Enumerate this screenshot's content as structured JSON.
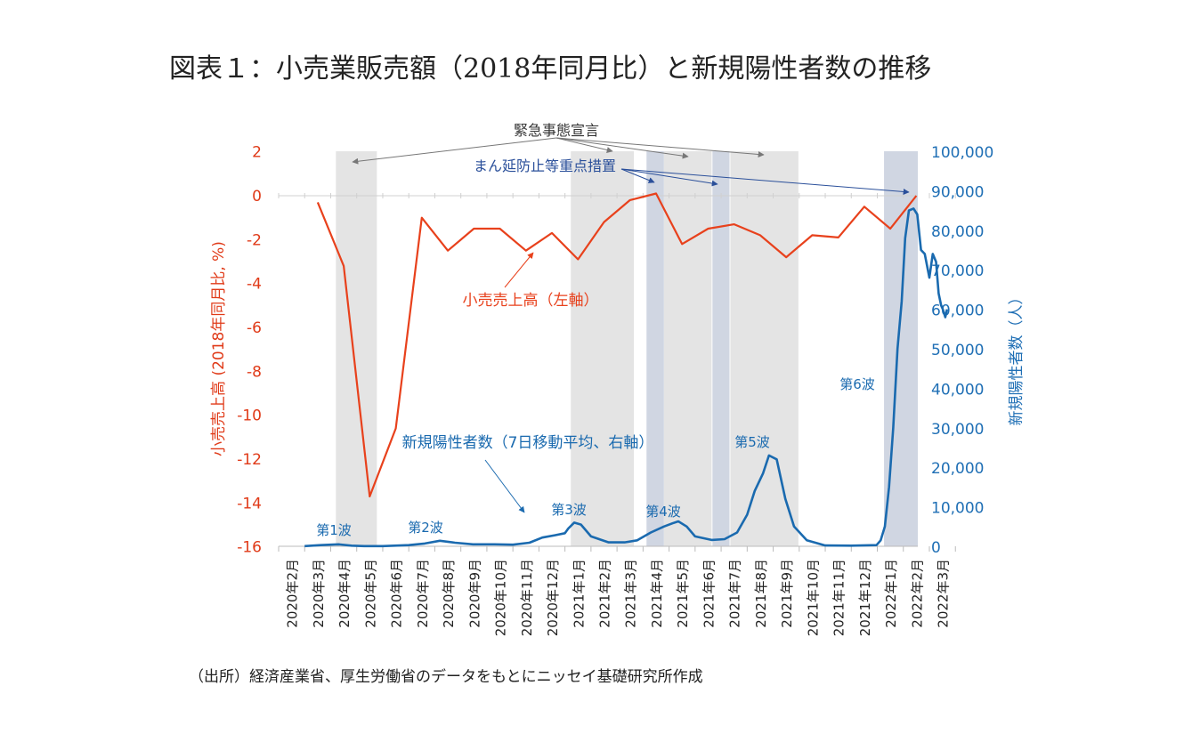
{
  "title": "図表１：小売業販売額（2018年同月比）と新規陽性者数の推移",
  "source": "（出所）経済産業省、厚生労働省のデータをもとにニッセイ基礎研究所作成",
  "colors": {
    "retail": "#e8411c",
    "cases": "#1a6aaf",
    "emergency_band": "#e4e4e4",
    "priority_band": "#d0d6e2",
    "blue_axis": "#1f6fb5",
    "red_axis": "#e03a18",
    "gray_arrow": "#777777",
    "blue_arrow": "#2a4f9a"
  },
  "chart_data": {
    "type": "line",
    "categories": [
      "2020年2月",
      "2020年3月",
      "2020年4月",
      "2020年5月",
      "2020年6月",
      "2020年7月",
      "2020年8月",
      "2020年9月",
      "2020年10月",
      "2020年11月",
      "2020年12月",
      "2021年1月",
      "2021年2月",
      "2021年3月",
      "2021年4月",
      "2021年5月",
      "2021年6月",
      "2021年7月",
      "2021年8月",
      "2021年9月",
      "2021年10月",
      "2021年11月",
      "2021年12月",
      "2022年1月",
      "2022年2月",
      "2022年3月"
    ],
    "left_axis": {
      "label": "小売売上高 (2018年同月比, %)",
      "min": -16,
      "max": 2,
      "ticks": [
        2,
        0,
        -2,
        -4,
        -6,
        -8,
        -10,
        -12,
        -14,
        -16
      ]
    },
    "right_axis": {
      "label": "新規陽性者数（人）",
      "min": 0,
      "max": 100000,
      "ticks": [
        "100,000",
        "90,000",
        "80,000",
        "70,000",
        "60,000",
        "50,000",
        "40,000",
        "30,000",
        "20,000",
        "10,000",
        "0"
      ]
    },
    "series": [
      {
        "name": "小売売上高（左軸）",
        "axis": "left",
        "x": [
          "2020-03",
          "2020-04",
          "2020-05",
          "2020-06",
          "2020-07",
          "2020-08",
          "2020-09",
          "2020-10",
          "2020-11",
          "2020-12",
          "2021-01",
          "2021-02",
          "2021-03",
          "2021-04",
          "2021-05",
          "2021-06",
          "2021-07",
          "2021-08",
          "2021-09",
          "2021-10",
          "2021-11",
          "2021-12",
          "2022-01",
          "2022-02"
        ],
        "values": [
          -0.3,
          -3.2,
          -13.7,
          -10.6,
          -1.0,
          -2.5,
          -1.5,
          -1.5,
          -2.5,
          -1.7,
          -2.9,
          -1.2,
          -0.2,
          0.1,
          -2.2,
          -1.5,
          -1.3,
          -1.8,
          -2.8,
          -1.8,
          -1.9,
          -0.5,
          -1.5,
          0.0
        ]
      },
      {
        "name": "新規陽性者数（7日移動平均、右軸）",
        "axis": "right",
        "x": [
          "2020-03-01",
          "2020-03-20",
          "2020-04-10",
          "2020-04-25",
          "2020-05-10",
          "2020-06-01",
          "2020-07-01",
          "2020-07-20",
          "2020-08-07",
          "2020-08-25",
          "2020-09-15",
          "2020-10-10",
          "2020-11-01",
          "2020-11-20",
          "2020-12-05",
          "2020-12-20",
          "2021-01-01",
          "2021-01-05",
          "2021-01-12",
          "2021-01-20",
          "2021-02-01",
          "2021-02-20",
          "2021-03-10",
          "2021-03-25",
          "2021-04-10",
          "2021-04-25",
          "2021-05-05",
          "2021-05-12",
          "2021-05-22",
          "2021-06-01",
          "2021-06-20",
          "2021-07-05",
          "2021-07-20",
          "2021-08-01",
          "2021-08-10",
          "2021-08-20",
          "2021-08-27",
          "2021-09-05",
          "2021-09-15",
          "2021-09-25",
          "2021-10-10",
          "2021-11-01",
          "2021-12-01",
          "2021-12-31",
          "2022-01-05",
          "2022-01-10",
          "2022-01-15",
          "2022-01-20",
          "2022-01-25",
          "2022-01-30",
          "2022-02-03",
          "2022-02-07",
          "2022-02-12",
          "2022-02-16",
          "2022-02-20",
          "2022-02-24",
          "2022-03-01",
          "2022-03-05",
          "2022-03-09",
          "2022-03-12",
          "2022-03-15",
          "2022-03-17",
          "2022-03-20",
          "2022-03-22"
        ],
        "values": [
          50,
          300,
          500,
          150,
          50,
          50,
          300,
          700,
          1400,
          900,
          500,
          500,
          400,
          900,
          2200,
          2800,
          3300,
          4500,
          6000,
          5500,
          2500,
          1000,
          1000,
          1500,
          3500,
          5000,
          5800,
          6300,
          5000,
          2500,
          1600,
          1800,
          3500,
          8000,
          14000,
          18500,
          23000,
          22000,
          12000,
          5000,
          1500,
          200,
          150,
          300,
          1500,
          5000,
          15000,
          30000,
          50000,
          62000,
          78000,
          85000,
          85500,
          84000,
          75000,
          74000,
          68000,
          74000,
          72000,
          64000,
          61000,
          60000,
          58000,
          60000
        ]
      }
    ],
    "shaded_periods": [
      {
        "kind": "緊急事態宣言",
        "start": "2020-04-07",
        "end": "2020-05-25"
      },
      {
        "kind": "緊急事態宣言",
        "start": "2021-01-08",
        "end": "2021-03-21"
      },
      {
        "kind": "緊急事態宣言",
        "start": "2021-04-25",
        "end": "2021-06-20"
      },
      {
        "kind": "緊急事態宣言",
        "start": "2021-07-12",
        "end": "2021-09-30"
      },
      {
        "kind": "まん延防止等重点措置",
        "start": "2021-04-05",
        "end": "2021-04-25"
      },
      {
        "kind": "まん延防止等重点措置",
        "start": "2021-06-21",
        "end": "2021-07-11"
      },
      {
        "kind": "まん延防止等重点措置",
        "start": "2022-01-09",
        "end": "2022-03-21"
      }
    ],
    "annotations": {
      "emergency": "緊急事態宣言",
      "priority": "まん延防止等重点措置",
      "retail_label": "小売売上高（左軸）",
      "cases_label": "新規陽性者数（7日移動平均、右軸）",
      "waves": [
        "第1波",
        "第2波",
        "第3波",
        "第4波",
        "第5波",
        "第6波"
      ]
    },
    "grid": "none",
    "legend": "none"
  }
}
